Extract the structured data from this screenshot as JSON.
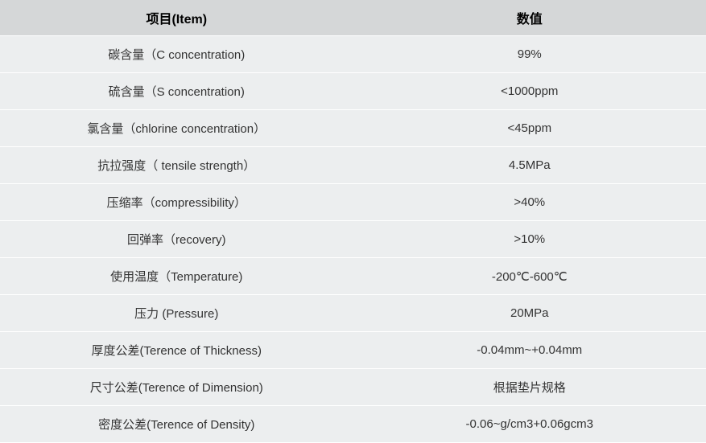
{
  "table": {
    "header_bg": "#d5d7d8",
    "row_bg": "#eceeef",
    "border_color": "#ffffff",
    "text_color": "#333333",
    "header_text_color": "#000000",
    "header_fontsize": 16,
    "cell_fontsize": 15,
    "columns": [
      {
        "key": "item",
        "label": "项目(Item)",
        "width_pct": 50
      },
      {
        "key": "value",
        "label": "数值",
        "width_pct": 50
      }
    ],
    "rows": [
      {
        "item": "碳含量（C concentration)",
        "value": "99%"
      },
      {
        "item": "硫含量（S concentration)",
        "value": "<1000ppm"
      },
      {
        "item": "氯含量（chlorine concentration）",
        "value": "<45ppm"
      },
      {
        "item": "抗拉强度（ tensile strength）",
        "value": "4.5MPa"
      },
      {
        "item": "压缩率（compressibility）",
        "value": ">40%"
      },
      {
        "item": "回弹率（recovery)",
        "value": ">10%"
      },
      {
        "item": "使用温度（Temperature)",
        "value": "-200℃-600℃"
      },
      {
        "item": "压力 (Pressure)",
        "value": "20MPa"
      },
      {
        "item": "厚度公差(Terence of Thickness)",
        "value": "-0.04mm~+0.04mm"
      },
      {
        "item": "尺寸公差(Terence of Dimension)",
        "value": "根据垫片规格"
      },
      {
        "item": "密度公差(Terence of Density)",
        "value": "-0.06~g/cm3+0.06gcm3"
      }
    ]
  }
}
